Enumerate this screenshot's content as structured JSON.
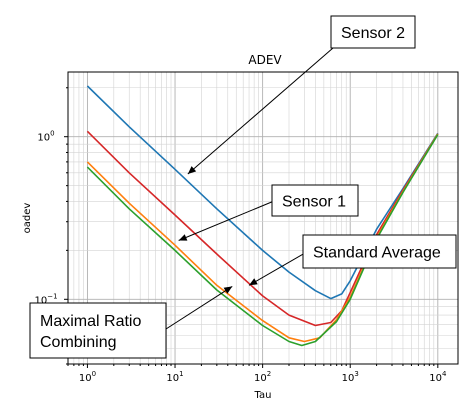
{
  "chart_data": {
    "type": "line",
    "title": "ADEV",
    "xlabel": "Tau",
    "ylabel": "oadev",
    "xscale": "log",
    "yscale": "log",
    "xlim": [
      0.6,
      17000
    ],
    "ylim": [
      0.04,
      2.5
    ],
    "grid": true,
    "x_ticks": [
      {
        "base": "10",
        "exp": "0"
      },
      {
        "base": "10",
        "exp": "1"
      },
      {
        "base": "10",
        "exp": "2"
      },
      {
        "base": "10",
        "exp": "3"
      },
      {
        "base": "10",
        "exp": "4"
      }
    ],
    "y_ticks": [
      {
        "base": "10",
        "exp": "0",
        "value": 1
      },
      {
        "base": "10",
        "exp": "−1",
        "value": 0.1
      }
    ],
    "series": [
      {
        "color": "#1f77b4",
        "points": [
          [
            1,
            2.05
          ],
          [
            3,
            1.15
          ],
          [
            10,
            0.63
          ],
          [
            30,
            0.36
          ],
          [
            100,
            0.2
          ],
          [
            200,
            0.147
          ],
          [
            400,
            0.113
          ],
          [
            600,
            0.101
          ],
          [
            800,
            0.108
          ],
          [
            1000,
            0.13
          ],
          [
            2000,
            0.27
          ],
          [
            4000,
            0.48
          ],
          [
            10000,
            1.05
          ]
        ]
      },
      {
        "color": "#d62728",
        "points": [
          [
            1,
            1.08
          ],
          [
            3,
            0.6
          ],
          [
            10,
            0.33
          ],
          [
            30,
            0.19
          ],
          [
            100,
            0.105
          ],
          [
            200,
            0.08
          ],
          [
            400,
            0.069
          ],
          [
            600,
            0.072
          ],
          [
            800,
            0.085
          ],
          [
            1000,
            0.11
          ],
          [
            2000,
            0.25
          ],
          [
            4000,
            0.47
          ],
          [
            10000,
            1.04
          ]
        ]
      },
      {
        "color": "#ff7f0e",
        "points": [
          [
            1,
            0.7
          ],
          [
            3,
            0.39
          ],
          [
            10,
            0.215
          ],
          [
            30,
            0.122
          ],
          [
            100,
            0.074
          ],
          [
            200,
            0.058
          ],
          [
            300,
            0.055
          ],
          [
            450,
            0.058
          ],
          [
            700,
            0.075
          ],
          [
            1000,
            0.103
          ],
          [
            2000,
            0.24
          ],
          [
            4000,
            0.46
          ],
          [
            10000,
            1.04
          ]
        ]
      },
      {
        "color": "#2ca02c",
        "points": [
          [
            1,
            0.65
          ],
          [
            3,
            0.36
          ],
          [
            10,
            0.2
          ],
          [
            30,
            0.114
          ],
          [
            100,
            0.069
          ],
          [
            200,
            0.055
          ],
          [
            280,
            0.052
          ],
          [
            400,
            0.055
          ],
          [
            700,
            0.073
          ],
          [
            1000,
            0.1
          ],
          [
            2000,
            0.235
          ],
          [
            4000,
            0.455
          ],
          [
            10000,
            1.03
          ]
        ]
      }
    ],
    "annotations": [
      {
        "text": "Sensor 2",
        "target": [
          14,
          0.59
        ]
      },
      {
        "text": "Sensor 1",
        "target": [
          11,
          0.23
        ]
      },
      {
        "text": "Standard Average",
        "target": [
          70,
          0.122
        ]
      },
      {
        "text": "Maximal Ratio Combining",
        "lines": [
          "Maximal Ratio",
          "Combining"
        ],
        "target": [
          45,
          0.12
        ]
      }
    ]
  }
}
